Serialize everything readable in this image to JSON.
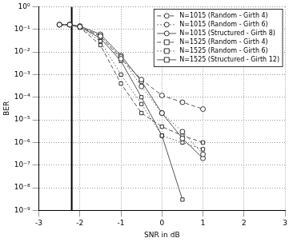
{
  "chart_data": {
    "type": "line",
    "x_label": "SNR in dB",
    "y_label": "BER",
    "log": "y",
    "grid": true,
    "legend": "top-right",
    "xlim": [
      -3,
      3
    ],
    "xticks": [
      -3,
      -2,
      -1,
      0,
      1,
      2,
      3
    ],
    "ylim": [
      1e-09,
      1
    ],
    "yticks": [
      {
        "value": 1e-09,
        "label": "10⁻⁹"
      },
      {
        "value": 1e-08,
        "label": "10⁻⁸"
      },
      {
        "value": 1e-07,
        "label": "10⁻⁷"
      },
      {
        "value": 1e-06,
        "label": "10⁻⁶"
      },
      {
        "value": 1e-05,
        "label": "10⁻⁵"
      },
      {
        "value": 0.0001,
        "label": "10⁻⁴"
      },
      {
        "value": 0.001,
        "label": "10⁻³"
      },
      {
        "value": 0.01,
        "label": "10⁻²"
      },
      {
        "value": 0.1,
        "label": "10⁻¹"
      },
      {
        "value": 1,
        "label": "10⁰"
      }
    ],
    "vlines": [
      -2.2
    ],
    "x": [
      -2.5,
      -2.25,
      -2,
      -1.5,
      -1,
      -0.5,
      0,
      0.5,
      1
    ],
    "series": [
      {
        "name": "N=1015 (Random - Girth 4)",
        "color": "#555555",
        "marker": "circle",
        "line_style": "dashed",
        "values": [
          0.16,
          0.16,
          0.13,
          0.05,
          0.005,
          0.0006,
          0.00012,
          6e-05,
          3e-05
        ]
      },
      {
        "name": "N=1015 (Random - Girth 6)",
        "color": "#555555",
        "marker": "circle",
        "line_style": "dotted",
        "values": [
          0.16,
          0.16,
          0.13,
          0.05,
          0.006,
          0.0003,
          2e-05,
          3e-06,
          3e-07
        ]
      },
      {
        "name": "N=1015 (Structured - Girth 8)",
        "color": "#555555",
        "marker": "circle",
        "line_style": "solid",
        "values": [
          0.16,
          0.16,
          0.14,
          0.06,
          0.007,
          0.0005,
          2e-05,
          1.5e-06,
          2e-07
        ]
      },
      {
        "name": "N=1525 (Random - Girth 4)",
        "color": "#555555",
        "marker": "square",
        "line_style": "dashed",
        "values": [
          0.16,
          0.16,
          0.12,
          0.02,
          0.0004,
          2e-05,
          5e-06,
          2e-06,
          1e-06
        ]
      },
      {
        "name": "N=1525 (Random - Girth 6)",
        "color": "#555555",
        "marker": "square",
        "line_style": "dotted",
        "values": [
          0.16,
          0.16,
          0.12,
          0.03,
          0.001,
          5e-05,
          2e-06,
          1e-06,
          5e-07
        ]
      },
      {
        "name": "N=1525 (Structured - Girth 12)",
        "color": "#555555",
        "marker": "square",
        "line_style": "solid",
        "values": [
          0.16,
          0.16,
          0.13,
          0.04,
          0.004,
          0.0001,
          2e-06,
          3e-09,
          null
        ]
      }
    ]
  }
}
